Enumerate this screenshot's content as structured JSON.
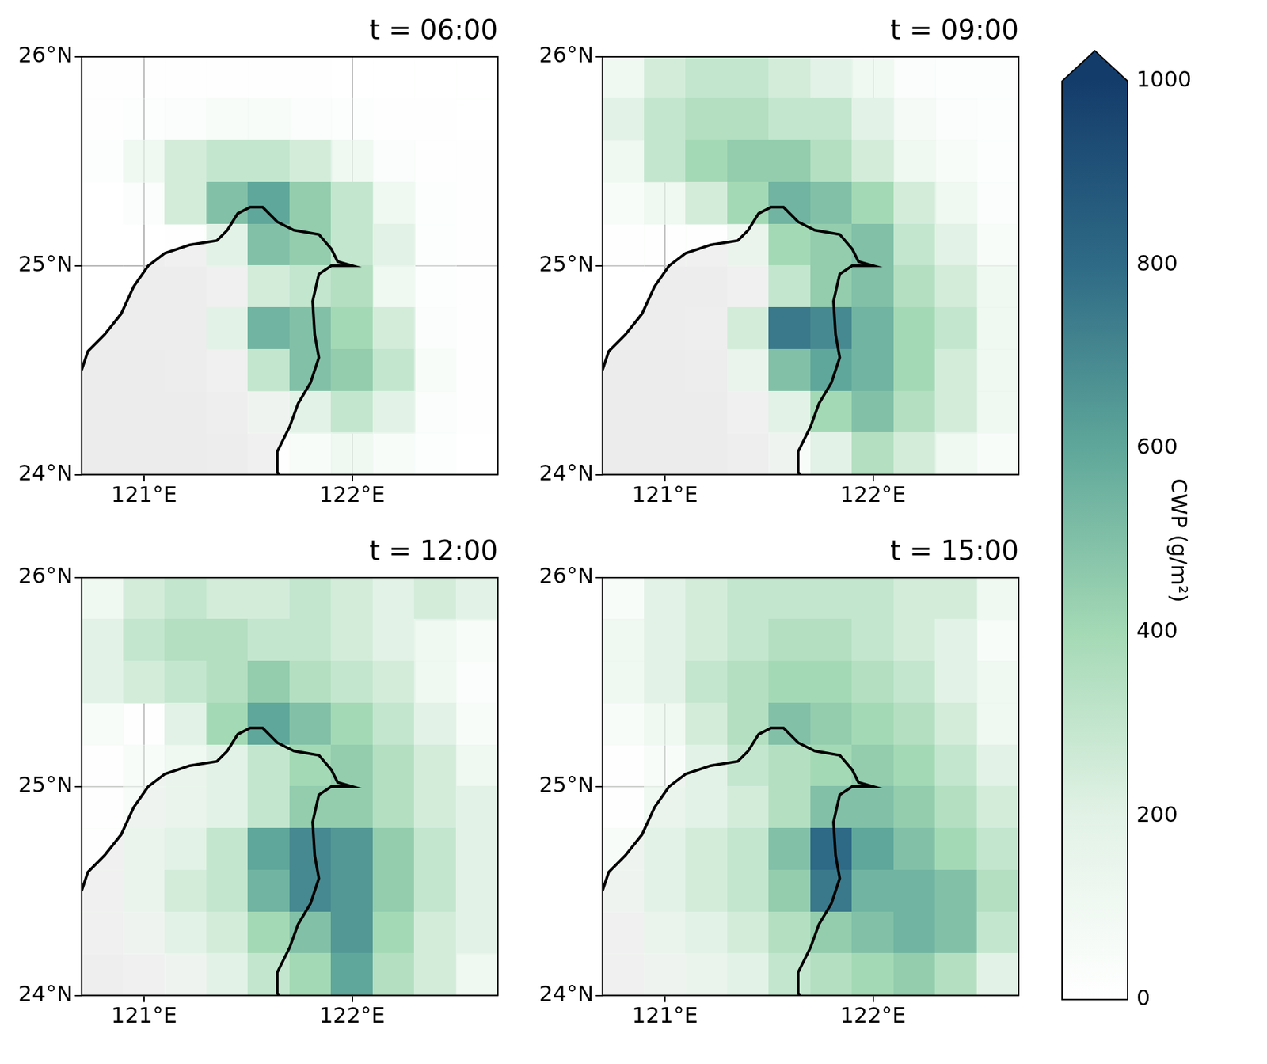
{
  "chart_data": [
    {
      "type": "heatmap",
      "title": "t = 06:00",
      "xlim": [
        120.7,
        122.7
      ],
      "ylim": [
        24,
        26
      ],
      "xticks": [
        {
          "value": 121,
          "label": "121°E"
        },
        {
          "value": 122,
          "label": "122°E"
        }
      ],
      "yticks": [
        {
          "value": 24,
          "label": "24°N"
        },
        {
          "value": 25,
          "label": "25°N"
        },
        {
          "value": 26,
          "label": "26°N"
        }
      ],
      "grid": true,
      "x_edges": [
        120.7,
        120.9,
        121.1,
        121.3,
        121.5,
        121.7,
        121.9,
        122.1,
        122.3,
        122.5,
        122.7
      ],
      "y_edges": [
        26,
        25.8,
        25.6,
        25.4,
        25.2,
        25.0,
        24.8,
        24.6,
        24.4,
        24.2,
        24.0
      ],
      "cells": [
        [
          40,
          40,
          50,
          50,
          40,
          40,
          30,
          30,
          30,
          30
        ],
        [
          50,
          60,
          80,
          100,
          100,
          80,
          60,
          40,
          40,
          30
        ],
        [
          60,
          150,
          250,
          300,
          300,
          250,
          150,
          80,
          50,
          40
        ],
        [
          30,
          80,
          250,
          500,
          600,
          450,
          300,
          150,
          60,
          40
        ],
        [
          20,
          20,
          50,
          200,
          500,
          450,
          300,
          200,
          60,
          40
        ],
        [
          10,
          10,
          10,
          50,
          250,
          300,
          350,
          150,
          60,
          40
        ],
        [
          10,
          10,
          10,
          200,
          550,
          500,
          400,
          250,
          80,
          40
        ],
        [
          0,
          0,
          10,
          50,
          300,
          500,
          450,
          300,
          100,
          40
        ],
        [
          0,
          0,
          0,
          20,
          100,
          200,
          300,
          200,
          80,
          40
        ],
        [
          0,
          0,
          0,
          10,
          50,
          100,
          150,
          100,
          60,
          30
        ]
      ],
      "coastline": {
        "lon": [
          120.7,
          120.73,
          120.81,
          120.89,
          120.95,
          121.02,
          121.1,
          121.22,
          121.35,
          121.4,
          121.45,
          121.51,
          121.57,
          121.64,
          121.72,
          121.84,
          121.9,
          121.93,
          122.0,
          121.9,
          121.84,
          121.81,
          121.82,
          121.84,
          121.8,
          121.74,
          121.7,
          121.64,
          121.64,
          121.65
        ],
        "lat": [
          24.5,
          24.59,
          24.67,
          24.77,
          24.9,
          25.0,
          25.06,
          25.1,
          25.12,
          25.17,
          25.25,
          25.28,
          25.28,
          25.21,
          25.17,
          25.15,
          25.08,
          25.02,
          25.0,
          25.0,
          24.96,
          24.83,
          24.67,
          24.56,
          24.44,
          24.34,
          24.23,
          24.11,
          24.01,
          24.0
        ]
      }
    },
    {
      "type": "heatmap",
      "title": "t = 09:00",
      "xlim": [
        120.7,
        122.7
      ],
      "ylim": [
        24,
        26
      ],
      "xticks": [
        {
          "value": 121,
          "label": "121°E"
        },
        {
          "value": 122,
          "label": "122°E"
        }
      ],
      "yticks": [
        {
          "value": 24,
          "label": "24°N"
        },
        {
          "value": 25,
          "label": "25°N"
        },
        {
          "value": 26,
          "label": "26°N"
        }
      ],
      "grid": true,
      "x_edges": [
        120.7,
        120.9,
        121.1,
        121.3,
        121.5,
        121.7,
        121.9,
        122.1,
        122.3,
        122.5,
        122.7
      ],
      "y_edges": [
        26,
        25.8,
        25.6,
        25.4,
        25.2,
        25.0,
        24.8,
        24.6,
        24.4,
        24.2,
        24.0
      ],
      "cells": [
        [
          150,
          250,
          300,
          300,
          250,
          200,
          150,
          80,
          60,
          60
        ],
        [
          200,
          300,
          350,
          350,
          300,
          300,
          200,
          120,
          80,
          60
        ],
        [
          150,
          300,
          400,
          450,
          450,
          350,
          250,
          150,
          100,
          60
        ],
        [
          100,
          150,
          250,
          400,
          550,
          500,
          400,
          250,
          150,
          80
        ],
        [
          50,
          50,
          50,
          150,
          400,
          450,
          500,
          300,
          200,
          100
        ],
        [
          20,
          10,
          10,
          50,
          300,
          450,
          500,
          350,
          250,
          150
        ],
        [
          10,
          10,
          20,
          250,
          750,
          700,
          550,
          400,
          300,
          150
        ],
        [
          0,
          0,
          10,
          150,
          500,
          600,
          550,
          400,
          250,
          150
        ],
        [
          0,
          0,
          0,
          50,
          200,
          400,
          500,
          350,
          250,
          150
        ],
        [
          0,
          0,
          0,
          20,
          100,
          200,
          350,
          250,
          150,
          100
        ]
      ],
      "coastline": {
        "lon": [
          120.7,
          120.73,
          120.81,
          120.89,
          120.95,
          121.02,
          121.1,
          121.22,
          121.35,
          121.4,
          121.45,
          121.51,
          121.57,
          121.64,
          121.72,
          121.84,
          121.9,
          121.93,
          122.0,
          121.9,
          121.84,
          121.81,
          121.82,
          121.84,
          121.8,
          121.74,
          121.7,
          121.64,
          121.64,
          121.65
        ],
        "lat": [
          24.5,
          24.59,
          24.67,
          24.77,
          24.9,
          25.0,
          25.06,
          25.1,
          25.12,
          25.17,
          25.25,
          25.28,
          25.28,
          25.21,
          25.17,
          25.15,
          25.08,
          25.02,
          25.0,
          25.0,
          24.96,
          24.83,
          24.67,
          24.56,
          24.44,
          24.34,
          24.23,
          24.11,
          24.01,
          24.0
        ]
      }
    },
    {
      "type": "heatmap",
      "title": "t = 12:00",
      "xlim": [
        120.7,
        122.7
      ],
      "ylim": [
        24,
        26
      ],
      "xticks": [
        {
          "value": 121,
          "label": "121°E"
        },
        {
          "value": 122,
          "label": "122°E"
        }
      ],
      "yticks": [
        {
          "value": 24,
          "label": "24°N"
        },
        {
          "value": 25,
          "label": "25°N"
        },
        {
          "value": 26,
          "label": "26°N"
        }
      ],
      "grid": true,
      "x_edges": [
        120.7,
        120.9,
        121.1,
        121.3,
        121.5,
        121.7,
        121.9,
        122.1,
        122.3,
        122.5,
        122.7
      ],
      "y_edges": [
        26,
        25.8,
        25.6,
        25.4,
        25.2,
        25.0,
        24.8,
        24.6,
        24.4,
        24.2,
        24.0
      ],
      "cells": [
        [
          150,
          250,
          300,
          250,
          250,
          300,
          250,
          200,
          250,
          200
        ],
        [
          200,
          300,
          350,
          350,
          300,
          300,
          250,
          200,
          150,
          100
        ],
        [
          200,
          250,
          300,
          350,
          450,
          350,
          300,
          250,
          150,
          80
        ],
        [
          100,
          50,
          200,
          400,
          600,
          500,
          400,
          300,
          200,
          100
        ],
        [
          50,
          100,
          150,
          200,
          300,
          400,
          450,
          350,
          250,
          150
        ],
        [
          50,
          100,
          150,
          200,
          300,
          450,
          450,
          350,
          250,
          200
        ],
        [
          50,
          150,
          200,
          300,
          600,
          700,
          650,
          450,
          300,
          200
        ],
        [
          50,
          150,
          250,
          300,
          550,
          700,
          650,
          450,
          300,
          200
        ],
        [
          50,
          100,
          200,
          250,
          400,
          500,
          650,
          400,
          250,
          200
        ],
        [
          20,
          50,
          100,
          200,
          300,
          400,
          600,
          350,
          250,
          150
        ]
      ],
      "coastline": {
        "lon": [
          120.7,
          120.73,
          120.81,
          120.89,
          120.95,
          121.02,
          121.1,
          121.22,
          121.35,
          121.4,
          121.45,
          121.51,
          121.57,
          121.64,
          121.72,
          121.84,
          121.9,
          121.93,
          122.0,
          121.9,
          121.84,
          121.81,
          121.82,
          121.84,
          121.8,
          121.74,
          121.7,
          121.64,
          121.64,
          121.65
        ],
        "lat": [
          24.5,
          24.59,
          24.67,
          24.77,
          24.9,
          25.0,
          25.06,
          25.1,
          25.12,
          25.17,
          25.25,
          25.28,
          25.28,
          25.21,
          25.17,
          25.15,
          25.08,
          25.02,
          25.0,
          25.0,
          24.96,
          24.83,
          24.67,
          24.56,
          24.44,
          24.34,
          24.23,
          24.11,
          24.01,
          24.0
        ]
      }
    },
    {
      "type": "heatmap",
      "title": "t = 15:00",
      "xlim": [
        120.7,
        122.7
      ],
      "ylim": [
        24,
        26
      ],
      "xticks": [
        {
          "value": 121,
          "label": "121°E"
        },
        {
          "value": 122,
          "label": "122°E"
        }
      ],
      "yticks": [
        {
          "value": 24,
          "label": "24°N"
        },
        {
          "value": 25,
          "label": "25°N"
        },
        {
          "value": 26,
          "label": "26°N"
        }
      ],
      "grid": true,
      "x_edges": [
        120.7,
        120.9,
        121.1,
        121.3,
        121.5,
        121.7,
        121.9,
        122.1,
        122.3,
        122.5,
        122.7
      ],
      "y_edges": [
        26,
        25.8,
        25.6,
        25.4,
        25.2,
        25.0,
        24.8,
        24.6,
        24.4,
        24.2,
        24.0
      ],
      "cells": [
        [
          100,
          200,
          250,
          300,
          300,
          300,
          300,
          250,
          250,
          150
        ],
        [
          150,
          200,
          250,
          300,
          350,
          350,
          300,
          250,
          200,
          100
        ],
        [
          150,
          200,
          300,
          350,
          400,
          400,
          350,
          300,
          200,
          150
        ],
        [
          100,
          150,
          250,
          350,
          500,
          450,
          400,
          350,
          250,
          150
        ],
        [
          50,
          100,
          200,
          300,
          350,
          400,
          450,
          400,
          300,
          200
        ],
        [
          50,
          150,
          200,
          250,
          350,
          500,
          500,
          450,
          350,
          250
        ],
        [
          100,
          200,
          250,
          300,
          500,
          800,
          600,
          500,
          400,
          300
        ],
        [
          100,
          200,
          250,
          300,
          450,
          750,
          550,
          550,
          500,
          350
        ],
        [
          50,
          150,
          200,
          250,
          350,
          450,
          500,
          550,
          500,
          300
        ],
        [
          50,
          100,
          150,
          200,
          300,
          350,
          400,
          450,
          350,
          200
        ]
      ],
      "coastline": {
        "lon": [
          120.7,
          120.73,
          120.81,
          120.89,
          120.95,
          121.02,
          121.1,
          121.22,
          121.35,
          121.4,
          121.45,
          121.51,
          121.57,
          121.64,
          121.72,
          121.84,
          121.9,
          121.93,
          122.0,
          121.9,
          121.84,
          121.81,
          121.82,
          121.84,
          121.8,
          121.74,
          121.7,
          121.64,
          121.64,
          121.65
        ],
        "lat": [
          24.5,
          24.59,
          24.67,
          24.77,
          24.9,
          25.0,
          25.06,
          25.1,
          25.12,
          25.17,
          25.25,
          25.28,
          25.28,
          25.21,
          25.17,
          25.15,
          25.08,
          25.02,
          25.0,
          25.0,
          24.96,
          24.83,
          24.67,
          24.56,
          24.44,
          24.34,
          24.23,
          24.11,
          24.01,
          24.0
        ]
      }
    },
    {
      "type": "colorbar",
      "ylim": [
        0,
        1000
      ],
      "yticks": [
        0,
        200,
        400,
        600,
        800,
        1000
      ],
      "y_label": "CWP (g/m²)"
    }
  ]
}
